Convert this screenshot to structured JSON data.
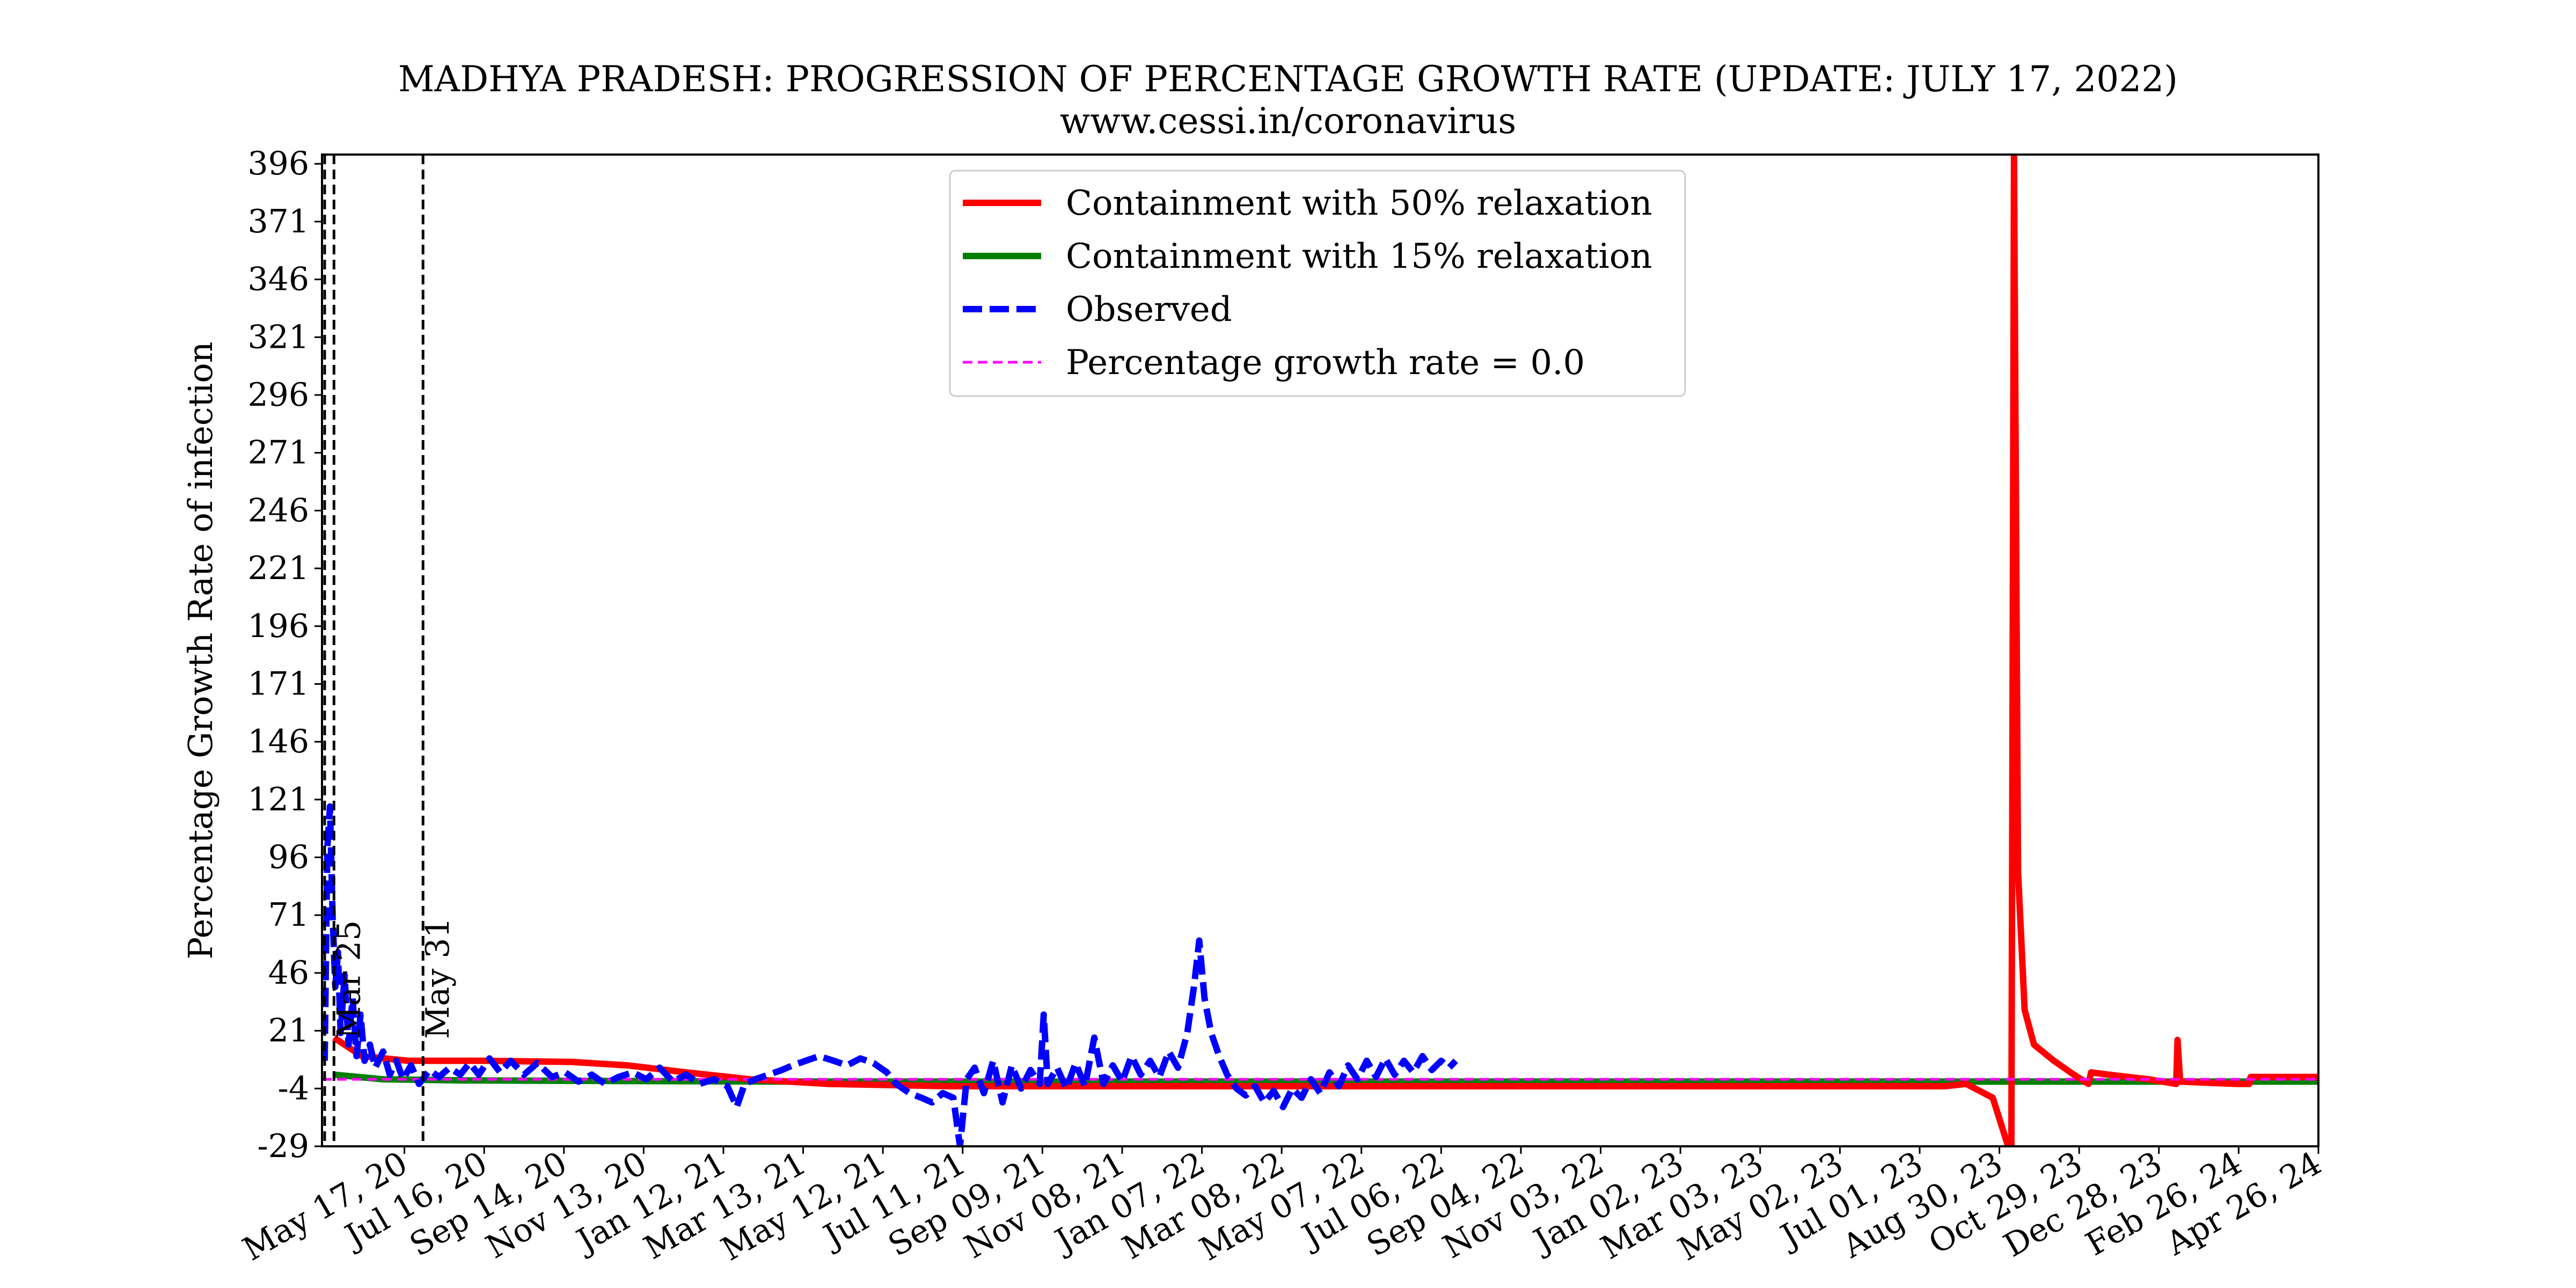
{
  "chart_data": {
    "type": "line",
    "title": "MADHYA PRADESH: PROGRESSION OF PERCENTAGE GROWTH RATE (UPDATE: JULY 17, 2022)",
    "subtitle": "www.cessi.in/coronavirus",
    "ylabel": "Percentage Growth Rate of infection",
    "xlabel": "",
    "ylim": [
      -29,
      400
    ],
    "xlim": [
      "2020-03-16",
      "2024-04-26"
    ],
    "yticks": [
      -29,
      -4,
      21,
      46,
      71,
      96,
      121,
      146,
      171,
      196,
      221,
      246,
      271,
      296,
      321,
      346,
      371,
      396
    ],
    "xticks": [
      {
        "date": "2020-05-17",
        "label": "May 17, 20"
      },
      {
        "date": "2020-07-16",
        "label": "Jul 16, 20"
      },
      {
        "date": "2020-09-14",
        "label": "Sep 14, 20"
      },
      {
        "date": "2020-11-13",
        "label": "Nov 13, 20"
      },
      {
        "date": "2021-01-12",
        "label": "Jan 12, 21"
      },
      {
        "date": "2021-03-13",
        "label": "Mar 13, 21"
      },
      {
        "date": "2021-05-12",
        "label": "May 12, 21"
      },
      {
        "date": "2021-07-11",
        "label": "Jul 11, 21"
      },
      {
        "date": "2021-09-09",
        "label": "Sep 09, 21"
      },
      {
        "date": "2021-11-08",
        "label": "Nov 08, 21"
      },
      {
        "date": "2022-01-07",
        "label": "Jan 07, 22"
      },
      {
        "date": "2022-03-08",
        "label": "Mar 08, 22"
      },
      {
        "date": "2022-05-07",
        "label": "May 07, 22"
      },
      {
        "date": "2022-07-06",
        "label": "Jul 06, 22"
      },
      {
        "date": "2022-09-04",
        "label": "Sep 04, 22"
      },
      {
        "date": "2022-11-03",
        "label": "Nov 03, 22"
      },
      {
        "date": "2023-01-02",
        "label": "Jan 02, 23"
      },
      {
        "date": "2023-03-03",
        "label": "Mar 03, 23"
      },
      {
        "date": "2023-05-02",
        "label": "May 02, 23"
      },
      {
        "date": "2023-07-01",
        "label": "Jul 01, 23"
      },
      {
        "date": "2023-08-30",
        "label": "Aug 30, 23"
      },
      {
        "date": "2023-10-29",
        "label": "Oct 29, 23"
      },
      {
        "date": "2023-12-28",
        "label": "Dec 28, 23"
      },
      {
        "date": "2024-02-26",
        "label": "Feb 26, 24"
      },
      {
        "date": "2024-04-26",
        "label": "Apr 26, 24"
      }
    ],
    "vlines": [
      {
        "date": "2020-03-18",
        "label": ""
      },
      {
        "date": "2020-03-25",
        "label": "Mar 25"
      },
      {
        "date": "2020-05-31",
        "label": "May 31"
      }
    ],
    "legend": {
      "placement": "top-center",
      "entries": [
        {
          "label": "Containment with 50% relaxation",
          "color": "#ff0000",
          "style": "solid"
        },
        {
          "label": "Containment with 15% relaxation",
          "color": "#008000",
          "style": "solid"
        },
        {
          "label": "Observed",
          "color": "#0000ff",
          "style": "dashed"
        },
        {
          "label": "Percentage growth rate = 0.0",
          "color": "#ff00ff",
          "style": "dashed"
        }
      ]
    },
    "series": [
      {
        "name": "Containment with 50% relaxation",
        "color": "#ff0000",
        "points": [
          [
            "2020-03-25",
            18
          ],
          [
            "2020-04-15",
            10
          ],
          [
            "2020-05-20",
            8
          ],
          [
            "2020-07-15",
            8
          ],
          [
            "2020-09-20",
            7.5
          ],
          [
            "2020-11-01",
            6
          ],
          [
            "2020-12-15",
            3
          ],
          [
            "2021-02-01",
            0
          ],
          [
            "2021-04-01",
            -2
          ],
          [
            "2021-07-01",
            -3
          ],
          [
            "2022-01-01",
            -3
          ],
          [
            "2023-01-01",
            -3
          ],
          [
            "2023-07-20",
            -3
          ],
          [
            "2023-08-05",
            -2
          ],
          [
            "2023-08-25",
            -8
          ],
          [
            "2023-09-05",
            -28
          ],
          [
            "2023-09-08",
            -29
          ],
          [
            "2023-09-10",
            400
          ],
          [
            "2023-09-13",
            90
          ],
          [
            "2023-09-18",
            30
          ],
          [
            "2023-09-25",
            15
          ],
          [
            "2023-10-10",
            8
          ],
          [
            "2023-10-25",
            2
          ],
          [
            "2023-11-05",
            -2
          ],
          [
            "2023-11-07",
            3
          ],
          [
            "2023-11-20",
            2
          ],
          [
            "2023-12-20",
            0
          ],
          [
            "2024-01-10",
            -2
          ],
          [
            "2024-01-11",
            17
          ],
          [
            "2024-01-13",
            -1
          ],
          [
            "2024-02-25",
            -2
          ],
          [
            "2024-03-05",
            -2
          ],
          [
            "2024-03-06",
            1
          ],
          [
            "2024-04-26",
            1
          ]
        ]
      },
      {
        "name": "Containment with 15% relaxation",
        "color": "#008000",
        "points": [
          [
            "2020-03-25",
            2
          ],
          [
            "2020-05-01",
            0
          ],
          [
            "2020-07-01",
            -0.5
          ],
          [
            "2021-03-01",
            -1
          ],
          [
            "2022-01-01",
            -1
          ],
          [
            "2023-01-01",
            -1
          ],
          [
            "2024-04-26",
            -1
          ]
        ]
      },
      {
        "name": "Observed",
        "color": "#0000ff",
        "points": [
          [
            "2020-03-18",
            8
          ],
          [
            "2020-03-20",
            100
          ],
          [
            "2020-03-22",
            118
          ],
          [
            "2020-03-24",
            70
          ],
          [
            "2020-03-26",
            40
          ],
          [
            "2020-03-28",
            55
          ],
          [
            "2020-03-30",
            20
          ],
          [
            "2020-04-02",
            45
          ],
          [
            "2020-04-05",
            15
          ],
          [
            "2020-04-08",
            35
          ],
          [
            "2020-04-11",
            10
          ],
          [
            "2020-04-14",
            28
          ],
          [
            "2020-04-17",
            8
          ],
          [
            "2020-04-21",
            15
          ],
          [
            "2020-04-25",
            5
          ],
          [
            "2020-05-01",
            12
          ],
          [
            "2020-05-06",
            2
          ],
          [
            "2020-05-11",
            8
          ],
          [
            "2020-05-16",
            0
          ],
          [
            "2020-05-22",
            6
          ],
          [
            "2020-05-28",
            -2
          ],
          [
            "2020-06-05",
            4
          ],
          [
            "2020-06-12",
            1
          ],
          [
            "2020-06-20",
            5
          ],
          [
            "2020-06-28",
            2
          ],
          [
            "2020-07-05",
            7
          ],
          [
            "2020-07-12",
            2
          ],
          [
            "2020-07-20",
            9
          ],
          [
            "2020-07-28",
            3
          ],
          [
            "2020-08-05",
            8
          ],
          [
            "2020-08-15",
            2
          ],
          [
            "2020-08-25",
            7
          ],
          [
            "2020-09-05",
            1
          ],
          [
            "2020-09-15",
            3
          ],
          [
            "2020-09-25",
            -1
          ],
          [
            "2020-10-05",
            2
          ],
          [
            "2020-10-15",
            -2
          ],
          [
            "2020-10-25",
            1
          ],
          [
            "2020-11-05",
            3
          ],
          [
            "2020-11-15",
            0
          ],
          [
            "2020-11-25",
            5
          ],
          [
            "2020-12-05",
            -1
          ],
          [
            "2020-12-15",
            2
          ],
          [
            "2020-12-25",
            -2
          ],
          [
            "2021-01-05",
            0
          ],
          [
            "2021-01-15",
            -3
          ],
          [
            "2021-01-22",
            -12
          ],
          [
            "2021-01-28",
            -2
          ],
          [
            "2021-02-05",
            0
          ],
          [
            "2021-02-15",
            2
          ],
          [
            "2021-02-25",
            4
          ],
          [
            "2021-03-05",
            6
          ],
          [
            "2021-03-15",
            8
          ],
          [
            "2021-03-25",
            10
          ],
          [
            "2021-04-05",
            8
          ],
          [
            "2021-04-15",
            6
          ],
          [
            "2021-04-25",
            9
          ],
          [
            "2021-05-05",
            7
          ],
          [
            "2021-05-15",
            3
          ],
          [
            "2021-05-22",
            -2
          ],
          [
            "2021-06-01",
            -6
          ],
          [
            "2021-06-10",
            -8
          ],
          [
            "2021-06-18",
            -10
          ],
          [
            "2021-06-26",
            -6
          ],
          [
            "2021-07-04",
            -8
          ],
          [
            "2021-07-09",
            -29
          ],
          [
            "2021-07-14",
            0
          ],
          [
            "2021-07-20",
            5
          ],
          [
            "2021-07-27",
            -6
          ],
          [
            "2021-08-03",
            8
          ],
          [
            "2021-08-10",
            -10
          ],
          [
            "2021-08-17",
            6
          ],
          [
            "2021-08-24",
            -4
          ],
          [
            "2021-08-31",
            4
          ],
          [
            "2021-09-07",
            -2
          ],
          [
            "2021-09-10",
            28
          ],
          [
            "2021-09-13",
            -2
          ],
          [
            "2021-09-20",
            5
          ],
          [
            "2021-09-27",
            -4
          ],
          [
            "2021-10-04",
            7
          ],
          [
            "2021-10-11",
            -3
          ],
          [
            "2021-10-18",
            18
          ],
          [
            "2021-10-25",
            -2
          ],
          [
            "2021-11-01",
            6
          ],
          [
            "2021-11-08",
            -1
          ],
          [
            "2021-11-15",
            10
          ],
          [
            "2021-11-22",
            2
          ],
          [
            "2021-11-29",
            8
          ],
          [
            "2021-12-06",
            1
          ],
          [
            "2021-12-13",
            12
          ],
          [
            "2021-12-20",
            5
          ],
          [
            "2021-12-27",
            20
          ],
          [
            "2022-01-01",
            40
          ],
          [
            "2022-01-05",
            60
          ],
          [
            "2022-01-09",
            35
          ],
          [
            "2022-01-14",
            20
          ],
          [
            "2022-01-20",
            10
          ],
          [
            "2022-01-26",
            2
          ],
          [
            "2022-02-02",
            -4
          ],
          [
            "2022-02-09",
            -7
          ],
          [
            "2022-02-16",
            -3
          ],
          [
            "2022-02-23",
            -10
          ],
          [
            "2022-03-02",
            -5
          ],
          [
            "2022-03-09",
            -12
          ],
          [
            "2022-03-16",
            -4
          ],
          [
            "2022-03-23",
            -8
          ],
          [
            "2022-03-30",
            0
          ],
          [
            "2022-04-06",
            -6
          ],
          [
            "2022-04-13",
            3
          ],
          [
            "2022-04-20",
            -3
          ],
          [
            "2022-04-27",
            6
          ],
          [
            "2022-05-04",
            0
          ],
          [
            "2022-05-11",
            8
          ],
          [
            "2022-05-18",
            1
          ],
          [
            "2022-05-25",
            9
          ],
          [
            "2022-06-01",
            2
          ],
          [
            "2022-06-08",
            8
          ],
          [
            "2022-06-15",
            3
          ],
          [
            "2022-06-22",
            10
          ],
          [
            "2022-06-29",
            4
          ],
          [
            "2022-07-06",
            8
          ],
          [
            "2022-07-12",
            5
          ],
          [
            "2022-07-17",
            8
          ]
        ]
      },
      {
        "name": "Percentage growth rate = 0.0",
        "color": "#ff00ff",
        "points": [
          [
            "2020-03-16",
            0
          ],
          [
            "2024-04-26",
            0
          ]
        ]
      }
    ]
  }
}
